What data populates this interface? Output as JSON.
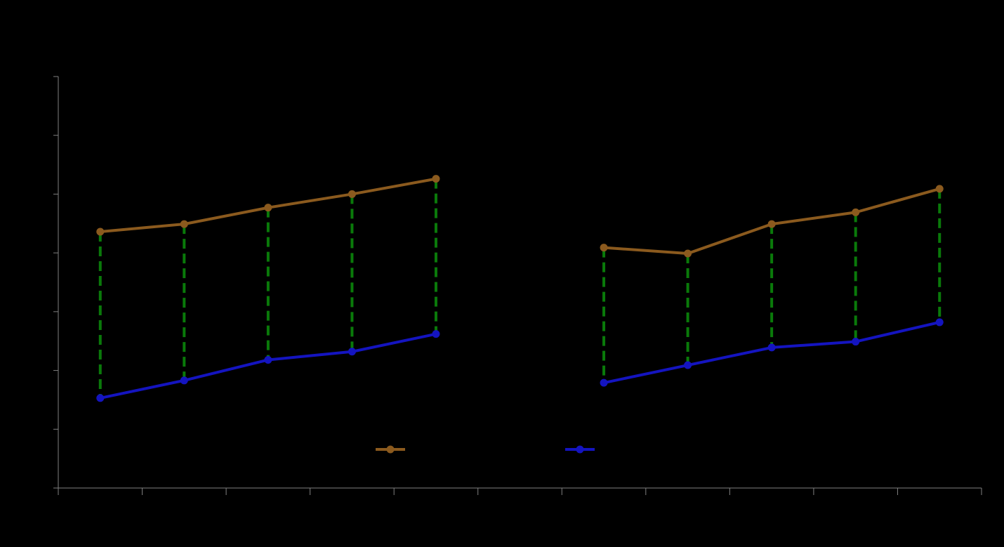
{
  "chart_data": {
    "type": "line",
    "title": "",
    "xlabel": "",
    "ylabel": "",
    "x_groups": [
      {
        "x": [
          0.5,
          1.5,
          2.5,
          3.5,
          4.5
        ]
      },
      {
        "x": [
          6.5,
          7.5,
          8.5,
          9.5,
          10.5
        ]
      }
    ],
    "series": [
      {
        "color": "#8b5a1e",
        "groups": [
          [
            4.36,
            4.49,
            4.77,
            5.0,
            5.26
          ],
          [
            4.09,
            3.99,
            4.49,
            4.69,
            5.09
          ]
        ]
      },
      {
        "color": "#1414c0",
        "groups": [
          [
            1.53,
            1.83,
            2.18,
            2.32,
            2.62
          ],
          [
            1.79,
            2.09,
            2.39,
            2.49,
            2.82
          ]
        ]
      }
    ],
    "connector_color": "#0a7a0a",
    "xlim": [
      0,
      11
    ],
    "ylim": [
      0,
      7
    ],
    "x_ticks": [
      0,
      1,
      2,
      3,
      4,
      5,
      6,
      7,
      8,
      9,
      10,
      11
    ],
    "y_ticks": [
      0,
      1,
      2,
      3,
      4,
      5,
      6,
      7
    ],
    "axis_color": "#808080",
    "legend": {
      "placement": "bottom-center"
    }
  }
}
